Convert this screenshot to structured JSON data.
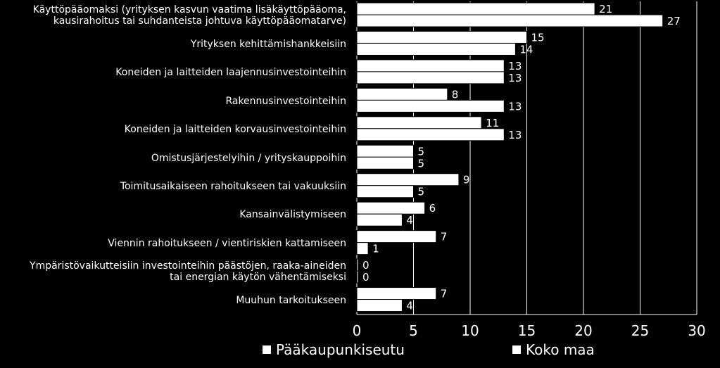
{
  "chart_data": {
    "type": "bar",
    "orientation": "horizontal",
    "categories": [
      "Käyttöpääomaksi (yrityksen kasvun vaatima lisäkäyttöpääoma,\nkausirahoitus tai suhdanteista johtuva käyttöpääomatarve)",
      "Yrityksen kehittämishankkeisiin",
      "Koneiden ja laitteiden laajennusinvestointeihin",
      "Rakennusinvestointeihin",
      "Koneiden ja laitteiden korvausinvestointeihin",
      "Omistusjärjestelyihin / yrityskauppoihin",
      "Toimitusaikaiseen rahoitukseen tai vakuuksiin",
      "Kansainvälistymiseen",
      "Viennin rahoitukseen / vientiriskien kattamiseen",
      "Ympäristövaikutteisiin investointeihin päästöjen, raaka-aineiden\ntai energian käytön vähentämiseksi",
      "Muuhun tarkoitukseen"
    ],
    "series": [
      {
        "name": "Pääkaupunkiseutu",
        "values": [
          21,
          15,
          13,
          8,
          11,
          5,
          9,
          6,
          7,
          0,
          7
        ]
      },
      {
        "name": "Koko maa",
        "values": [
          27,
          14,
          13,
          13,
          13,
          5,
          5,
          4,
          1,
          0,
          4
        ]
      }
    ],
    "xlim": [
      0,
      30
    ],
    "xticks": [
      0,
      5,
      10,
      15,
      20,
      25,
      30
    ],
    "grid": true,
    "legend_position": "bottom",
    "colors": {
      "background": "#000000",
      "bar": "#ffffff",
      "bar_border": "#000000",
      "grid": "#ffffff",
      "text": "#ffffff"
    }
  }
}
